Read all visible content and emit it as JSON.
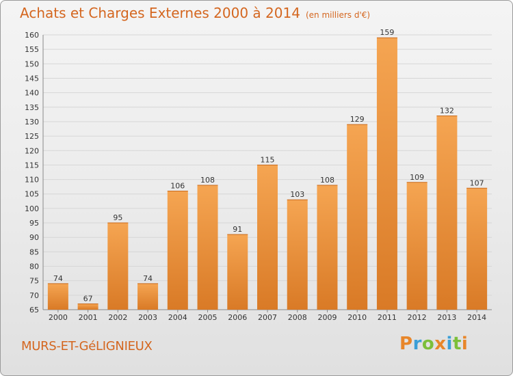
{
  "title": "Achats et Charges Externes 2000 à 2014",
  "unit": "(en milliers d'€)",
  "place": "MURS-ET-GéLIGNIEUX",
  "logo": {
    "text": "Proxiti",
    "colors": [
      "#e8862a",
      "#3c9fd6",
      "#7cbf3a",
      "#e8862a",
      "#3c9fd6",
      "#7cbf3a",
      "#e8862a"
    ]
  },
  "colors": {
    "bar_top": "#f5a552",
    "bar_bottom": "#d97a26",
    "accent": "#d4661f"
  },
  "chart_data": {
    "type": "bar",
    "title": "Achats et Charges Externes 2000 à 2014",
    "subtitle": "(en milliers d'€)",
    "categories": [
      "2000",
      "2001",
      "2002",
      "2003",
      "2004",
      "2005",
      "2006",
      "2007",
      "2008",
      "2009",
      "2010",
      "2011",
      "2012",
      "2013",
      "2014"
    ],
    "values": [
      74,
      67,
      95,
      74,
      106,
      108,
      91,
      115,
      103,
      108,
      129,
      159,
      109,
      132,
      107
    ],
    "ylim": [
      65,
      160
    ],
    "yticks": [
      65,
      70,
      75,
      80,
      85,
      90,
      95,
      100,
      105,
      110,
      115,
      120,
      125,
      130,
      135,
      140,
      145,
      150,
      155,
      160
    ],
    "grid": true,
    "legend": "none"
  }
}
